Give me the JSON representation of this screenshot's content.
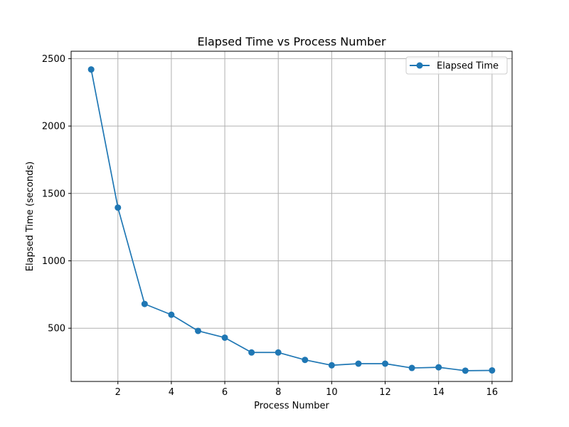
{
  "chart_data": {
    "type": "line",
    "title": "Elapsed Time vs Process Number",
    "xlabel": "Process Number",
    "ylabel": "Elapsed Time (seconds)",
    "xlim": [
      0.25,
      16.75
    ],
    "ylim": [
      105,
      2555
    ],
    "xticks": [
      2,
      4,
      6,
      8,
      10,
      12,
      14,
      16
    ],
    "yticks": [
      500,
      1000,
      1500,
      2000,
      2500
    ],
    "grid": true,
    "legend_position": "top-right",
    "series": [
      {
        "name": "Elapsed Time",
        "color": "#1f77b4",
        "marker": "circle",
        "x": [
          1,
          2,
          3,
          4,
          5,
          6,
          7,
          8,
          9,
          10,
          11,
          12,
          13,
          14,
          15,
          16
        ],
        "y": [
          2420,
          1395,
          680,
          600,
          480,
          430,
          320,
          320,
          265,
          225,
          237,
          237,
          205,
          210,
          185,
          187
        ]
      }
    ]
  }
}
